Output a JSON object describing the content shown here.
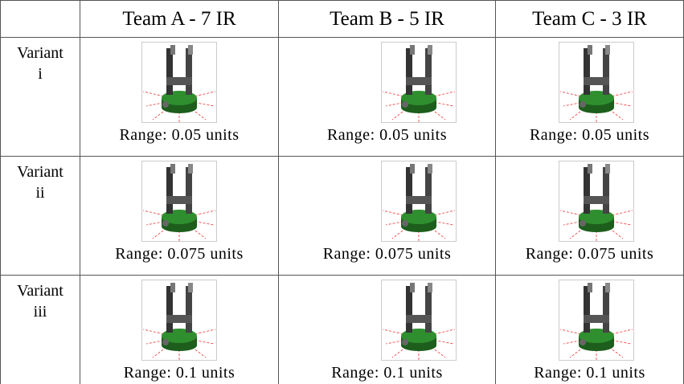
{
  "header": {
    "columns": [
      "Team A - 7 IR",
      "Team B - 5 IR",
      "Team C - 3 IR"
    ]
  },
  "rows": [
    {
      "label": [
        "Variant",
        "i"
      ],
      "cells": [
        "Range: 0.05 units",
        "Range: 0.05 units",
        "Range: 0.05 units"
      ]
    },
    {
      "label": [
        "Variant",
        "ii"
      ],
      "cells": [
        "Range: 0.075 units",
        "Range: 0.075 units",
        "Range: 0.075 units"
      ]
    },
    {
      "label": [
        "Variant",
        "iii"
      ],
      "cells": [
        "Range: 0.1 units",
        "Range: 0.1 units",
        "Range: 0.1 units"
      ]
    }
  ]
}
